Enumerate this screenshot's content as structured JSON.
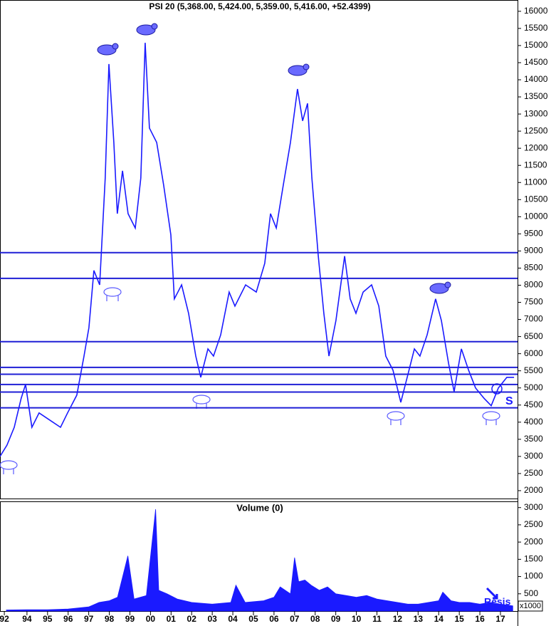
{
  "chart_data": [
    {
      "type": "line",
      "title": "PSI 20 (5,368.00, 5,424.00, 5,359.00, 5,416.00, +52.4399)",
      "color": "#1a1aff",
      "x": [
        1992.69,
        1993.03,
        1993.38,
        1993.72,
        1993.93,
        1994.24,
        1994.59,
        1995.11,
        1995.63,
        1995.97,
        1996.42,
        1996.77,
        1997.01,
        1997.25,
        1997.53,
        1997.8,
        1997.98,
        1998.22,
        1998.39,
        1998.64,
        1998.91,
        1999.26,
        1999.53,
        1999.74,
        1999.95,
        2000.3,
        2000.64,
        2000.99,
        2001.16,
        2001.51,
        2001.85,
        2002.2,
        2002.44,
        2002.79,
        2003.06,
        2003.41,
        2003.82,
        2004.1,
        2004.62,
        2005.14,
        2005.55,
        2005.83,
        2006.11,
        2006.45,
        2006.8,
        2007.14,
        2007.39,
        2007.63,
        2007.84,
        2008.15,
        2008.42,
        2008.67,
        2009.01,
        2009.43,
        2009.7,
        2009.98,
        2010.33,
        2010.74,
        2011.09,
        2011.43,
        2011.78,
        2012.16,
        2012.47,
        2012.82,
        2013.09,
        2013.44,
        2013.85,
        2014.13,
        2014.48,
        2014.75,
        2015.1,
        2015.45,
        2015.79,
        2016.21,
        2016.55,
        2016.9,
        2017.31,
        2017.66
      ],
      "values": [
        3000,
        3330,
        3850,
        4700,
        5100,
        3850,
        4270,
        4060,
        3850,
        4270,
        4790,
        5930,
        6760,
        8430,
        8010,
        11130,
        14460,
        12170,
        10090,
        11340,
        10090,
        9670,
        11130,
        15080,
        12590,
        12170,
        10920,
        9470,
        7600,
        8010,
        7180,
        5930,
        5310,
        6140,
        5930,
        6550,
        7800,
        7390,
        8010,
        7800,
        8640,
        10090,
        9670,
        10920,
        12170,
        13730,
        12800,
        13310,
        11130,
        8850,
        7180,
        5930,
        6970,
        8850,
        7600,
        7180,
        7800,
        8010,
        7390,
        5930,
        5520,
        4580,
        5310,
        6140,
        5930,
        6550,
        7600,
        6970,
        5720,
        4890,
        6140,
        5520,
        5000,
        4690,
        4480,
        5000,
        5310,
        5310
      ],
      "reference_lines": [
        8950,
        8200,
        6350,
        5600,
        5400,
        5100,
        4880,
        4420
      ],
      "reference_color": "#1f1fd6",
      "annotations": [
        "S"
      ],
      "xlim": [
        1992.69,
        2017.83
      ],
      "ylim": [
        1770,
        16330
      ],
      "yticks": [
        2000,
        2500,
        3000,
        3500,
        4000,
        4500,
        5000,
        5500,
        6000,
        6500,
        7000,
        7500,
        8000,
        8500,
        9000,
        9500,
        10000,
        10500,
        11000,
        11500,
        12000,
        12500,
        13000,
        13500,
        14000,
        14500,
        15000,
        15500,
        16000
      ]
    },
    {
      "type": "area",
      "title": "Volume (0)",
      "color": "#1a1aff",
      "x": [
        1993.0,
        1994.0,
        1995.0,
        1996.0,
        1997.0,
        1997.5,
        1998.0,
        1998.4,
        1998.9,
        1999.2,
        1999.8,
        2000.25,
        2000.4,
        2000.8,
        2001.3,
        2002.0,
        2003.0,
        2003.9,
        2004.15,
        2004.6,
        2005.5,
        2006.0,
        2006.3,
        2006.8,
        2007.0,
        2007.2,
        2007.5,
        2007.8,
        2008.2,
        2008.6,
        2009.0,
        2009.5,
        2010.0,
        2010.5,
        2011.0,
        2011.5,
        2012.0,
        2012.5,
        2013.0,
        2013.5,
        2014.0,
        2014.2,
        2014.6,
        2015.0,
        2015.5,
        2016.0,
        2016.5,
        2017.0,
        2017.6
      ],
      "values": [
        30,
        40,
        40,
        60,
        120,
        250,
        300,
        400,
        1600,
        350,
        450,
        2950,
        600,
        500,
        350,
        250,
        200,
        250,
        750,
        250,
        300,
        400,
        700,
        500,
        1550,
        850,
        900,
        750,
        600,
        700,
        500,
        450,
        400,
        450,
        350,
        300,
        250,
        200,
        200,
        250,
        300,
        550,
        300,
        250,
        250,
        200,
        250,
        200,
        150
      ],
      "unit_label": "x1000",
      "annotations": [
        "Resis"
      ],
      "xlim": [
        1992.69,
        2017.83
      ],
      "ylim": [
        0,
        3180
      ],
      "yticks": [
        500,
        1000,
        1500,
        2000,
        2500,
        3000
      ],
      "xticks": [
        {
          "value": 1992.9,
          "label": "92"
        },
        {
          "value": 1994,
          "label": "94"
        },
        {
          "value": 1995,
          "label": "95"
        },
        {
          "value": 1996,
          "label": "96"
        },
        {
          "value": 1997,
          "label": "97"
        },
        {
          "value": 1998,
          "label": "98"
        },
        {
          "value": 1999,
          "label": "99"
        },
        {
          "value": 2000,
          "label": "00"
        },
        {
          "value": 2001,
          "label": "01"
        },
        {
          "value": 2002,
          "label": "02"
        },
        {
          "value": 2003,
          "label": "03"
        },
        {
          "value": 2004,
          "label": "04"
        },
        {
          "value": 2005,
          "label": "05"
        },
        {
          "value": 2006,
          "label": "06"
        },
        {
          "value": 2007,
          "label": "07"
        },
        {
          "value": 2008,
          "label": "08"
        },
        {
          "value": 2009,
          "label": "09"
        },
        {
          "value": 2010,
          "label": "10"
        },
        {
          "value": 2011,
          "label": "11"
        },
        {
          "value": 2012,
          "label": "12"
        },
        {
          "value": 2013,
          "label": "13"
        },
        {
          "value": 2014,
          "label": "14"
        },
        {
          "value": 2015,
          "label": "15"
        },
        {
          "value": 2016,
          "label": "16"
        },
        {
          "value": 2017,
          "label": "17"
        }
      ]
    }
  ]
}
